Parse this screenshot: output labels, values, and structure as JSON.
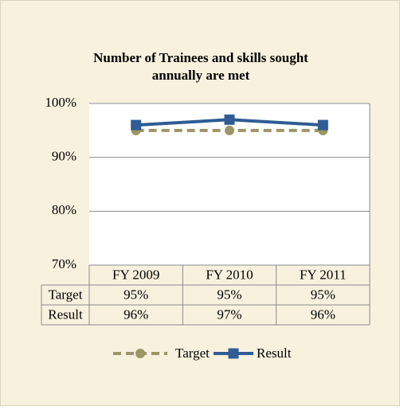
{
  "chart_data": {
    "type": "line",
    "title_lines": [
      "Number of Trainees and skills sought",
      "annually are met"
    ],
    "categories": [
      "FY 2009",
      "FY 2010",
      "FY 2011"
    ],
    "series": [
      {
        "name": "Target",
        "color": "#9c9565",
        "dashed": true,
        "marker": "circle",
        "values": [
          95,
          95,
          95
        ],
        "value_labels": [
          "95%",
          "95%",
          "95%"
        ]
      },
      {
        "name": "Result",
        "color": "#2f5d93",
        "dashed": false,
        "marker": "square",
        "values": [
          96,
          97,
          96
        ],
        "value_labels": [
          "96%",
          "97%",
          "96%"
        ]
      }
    ],
    "ylim": [
      70,
      100
    ],
    "yticks": [
      {
        "value": 70,
        "label": "70%"
      },
      {
        "value": 80,
        "label": "80%"
      },
      {
        "value": 90,
        "label": "90%"
      },
      {
        "value": 100,
        "label": "100%"
      }
    ],
    "grid": true,
    "legend": "bottom",
    "data_table": true
  }
}
